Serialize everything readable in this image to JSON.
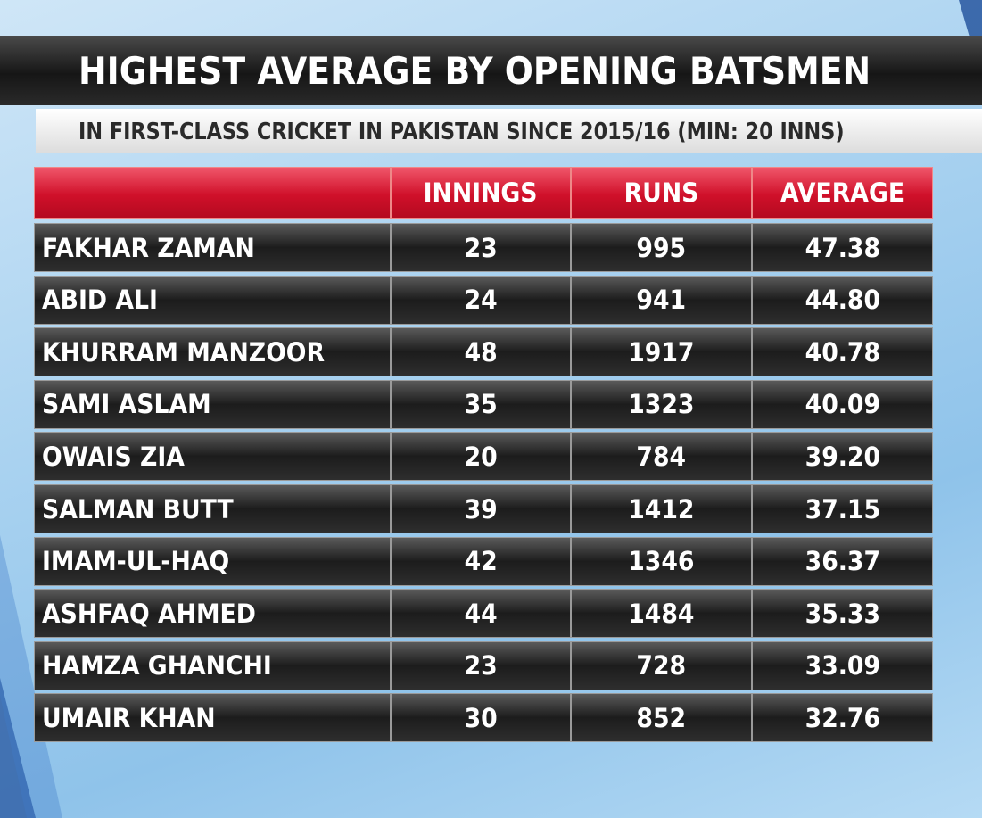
{
  "header": {
    "title": "HIGHEST AVERAGE BY OPENING BATSMEN",
    "subtitle": "IN FIRST-CLASS CRICKET IN PAKISTAN SINCE 2015/16 (MIN: 20 INNS)"
  },
  "table": {
    "columns": [
      "INNINGS",
      "RUNS",
      "AVERAGE"
    ],
    "rows": [
      [
        "FAKHAR ZAMAN",
        "23",
        "995",
        "47.38"
      ],
      [
        "ABID ALI",
        "24",
        "941",
        "44.80"
      ],
      [
        "KHURRAM MANZOOR",
        "48",
        "1917",
        "40.78"
      ],
      [
        "SAMI ASLAM",
        "35",
        "1323",
        "40.09"
      ],
      [
        "OWAIS ZIA",
        "20",
        "784",
        "39.20"
      ],
      [
        "SALMAN BUTT",
        "39",
        "1412",
        "37.15"
      ],
      [
        "IMAM-UL-HAQ",
        "42",
        "1346",
        "36.37"
      ],
      [
        "ASHFAQ AHMED",
        "44",
        "1484",
        "35.33"
      ],
      [
        "HAMZA GHANCHI",
        "23",
        "728",
        "33.09"
      ],
      [
        "UMAIR KHAN",
        "30",
        "852",
        "32.76"
      ]
    ]
  }
}
